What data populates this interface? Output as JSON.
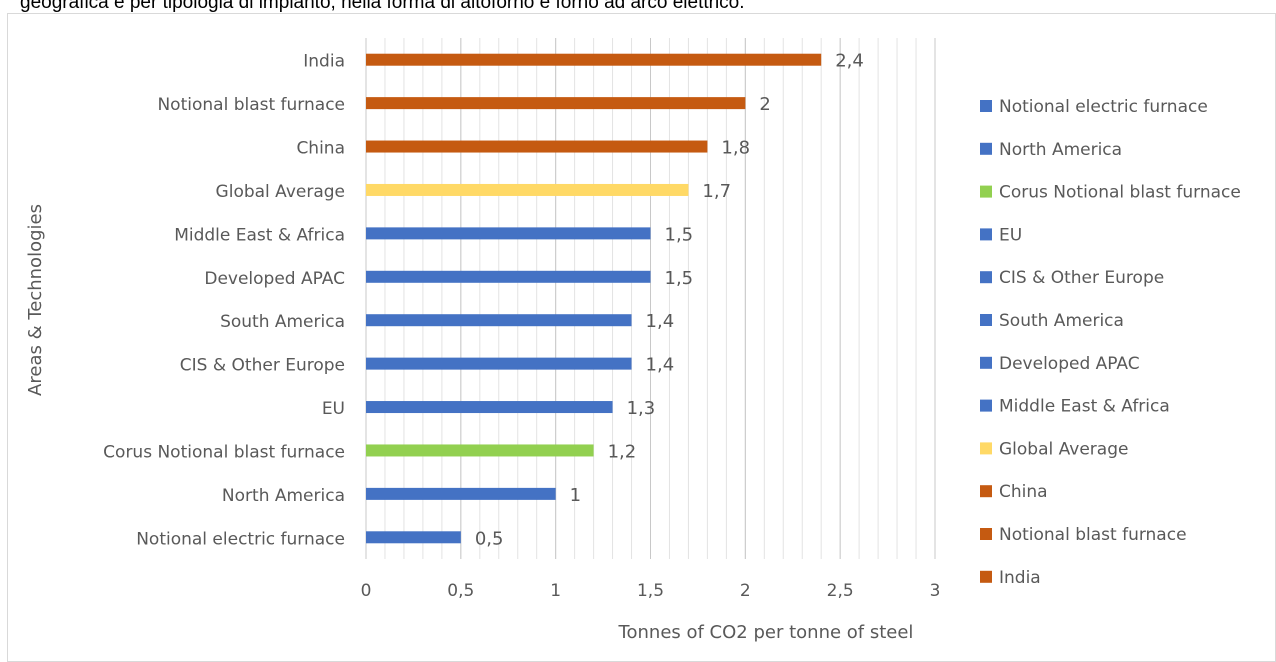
{
  "caption": "geografica e per tipologia di impianto, nella forma di altoforno e forno ad arco elettrico.",
  "chart_data": {
    "type": "bar",
    "orientation": "horizontal",
    "categories": [
      "Notional electric furnace",
      "North America",
      "Corus Notional blast furnace",
      "EU",
      "CIS & Other Europe",
      "South America",
      "Developed APAC",
      "Middle East & Africa",
      "Global Average",
      "China",
      "Notional blast furnace",
      "India"
    ],
    "values": [
      0.5,
      1,
      1.2,
      1.3,
      1.4,
      1.4,
      1.5,
      1.5,
      1.7,
      1.8,
      2,
      2.4
    ],
    "value_labels": [
      "0,5",
      "1",
      "1,2",
      "1,3",
      "1,4",
      "1,4",
      "1,5",
      "1,5",
      "1,7",
      "1,8",
      "2",
      "2,4"
    ],
    "colors": [
      "#4472c4",
      "#4472c4",
      "#92d050",
      "#4472c4",
      "#4472c4",
      "#4472c4",
      "#4472c4",
      "#4472c4",
      "#ffd966",
      "#c55a11",
      "#c55a11",
      "#c55a11"
    ],
    "xlabel": "Tonnes of CO2 per tonne of steel",
    "ylabel": "Areas & Technologies",
    "xlim": [
      0,
      3
    ],
    "x_ticks": [
      0,
      0.5,
      1,
      1.5,
      2,
      2.5,
      3
    ],
    "x_tick_labels": [
      "0",
      "0,5",
      "1",
      "1,5",
      "2",
      "2,5",
      "3"
    ],
    "grid": true,
    "legend_position": "right"
  }
}
